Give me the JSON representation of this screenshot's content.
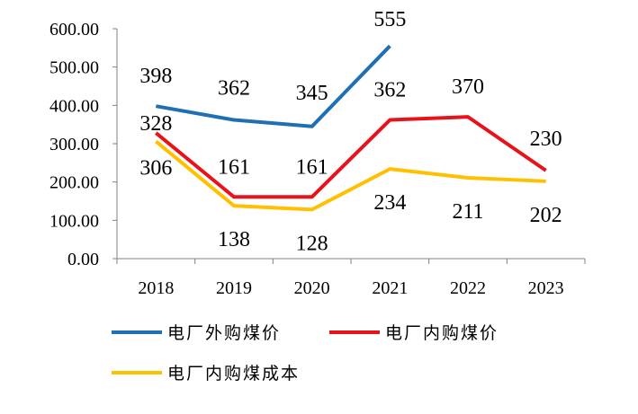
{
  "chart_data": {
    "type": "line",
    "title": "",
    "xlabel": "",
    "ylabel": "",
    "categories": [
      "2018",
      "2019",
      "2020",
      "2021",
      "2022",
      "2023"
    ],
    "ylim": [
      0,
      600
    ],
    "yticks": [
      "0.00",
      "100.00",
      "200.00",
      "300.00",
      "400.00",
      "500.00",
      "600.00"
    ],
    "grid": false,
    "legend_position": "bottom",
    "series": [
      {
        "name": "电厂外购煤价",
        "color": "#1f6fb4",
        "values": [
          398,
          362,
          345,
          555,
          null,
          null
        ],
        "labels": [
          "398",
          "362",
          "345",
          "555",
          "",
          ""
        ]
      },
      {
        "name": "电厂内购煤价",
        "color": "#e8121b",
        "values": [
          328,
          161,
          161,
          362,
          370,
          230
        ],
        "labels": [
          "328",
          "161",
          "161",
          "362",
          "370",
          "230"
        ]
      },
      {
        "name": "电厂内购煤成本",
        "color": "#ffc000",
        "values": [
          306,
          138,
          128,
          234,
          211,
          202
        ],
        "labels": [
          "306",
          "138",
          "128",
          "234",
          "211",
          "202"
        ]
      }
    ]
  }
}
